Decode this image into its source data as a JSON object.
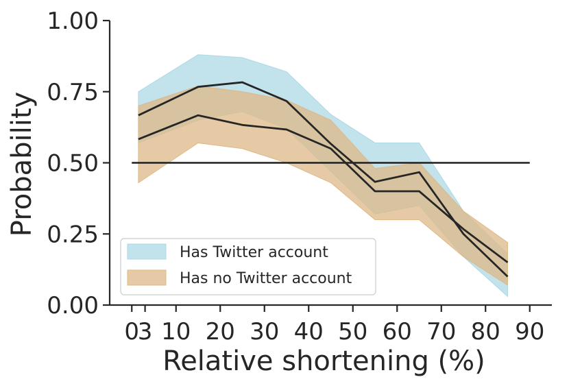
{
  "chart_data": {
    "type": "area",
    "xlabel": "Relative shortening (%)",
    "ylabel": "Probability",
    "xlim": [
      -5,
      95
    ],
    "ylim": [
      0,
      1
    ],
    "xticks": [
      0,
      3,
      10,
      20,
      30,
      40,
      50,
      60,
      70,
      80,
      90
    ],
    "xtick_labels": [
      "0",
      "3",
      "10",
      "20",
      "30",
      "40",
      "50",
      "60",
      "70",
      "80",
      "90"
    ],
    "yticks": [
      0.0,
      0.25,
      0.5,
      0.75,
      1.0
    ],
    "ytick_labels": [
      "0.00",
      "0.25",
      "0.50",
      "0.75",
      "1.00"
    ],
    "x": [
      1.5,
      15,
      25,
      35,
      45,
      55,
      65,
      75,
      85
    ],
    "series": [
      {
        "name": "Has Twitter account",
        "color": "#add8e6",
        "mean": [
          0.667,
          0.767,
          0.783,
          0.717,
          0.567,
          0.433,
          0.467,
          0.25,
          0.1
        ],
        "lower": [
          0.57,
          0.65,
          0.68,
          0.62,
          0.47,
          0.32,
          0.35,
          0.17,
          0.03
        ],
        "upper": [
          0.75,
          0.88,
          0.87,
          0.82,
          0.67,
          0.57,
          0.57,
          0.33,
          0.18
        ]
      },
      {
        "name": "Has no Twitter account",
        "color": "#deb887",
        "mean": [
          0.583,
          0.667,
          0.633,
          0.617,
          0.55,
          0.4,
          0.4,
          0.267,
          0.15
        ],
        "lower": [
          0.43,
          0.57,
          0.55,
          0.5,
          0.43,
          0.3,
          0.3,
          0.17,
          0.07
        ],
        "upper": [
          0.7,
          0.77,
          0.75,
          0.72,
          0.65,
          0.48,
          0.5,
          0.33,
          0.22
        ]
      }
    ],
    "reference_line": {
      "y": 0.5,
      "x_start": 0,
      "x_end": 90
    },
    "legend_position": "lower-left"
  }
}
